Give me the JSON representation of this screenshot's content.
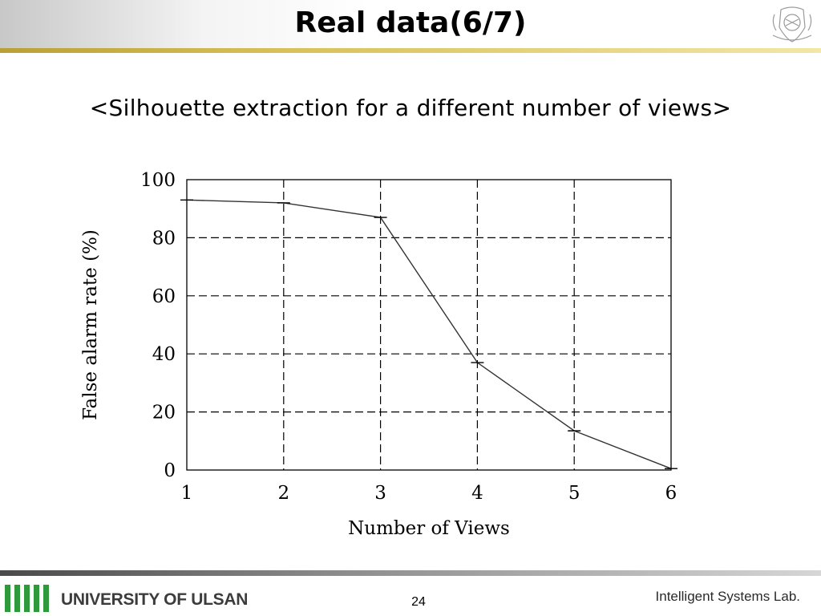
{
  "slide": {
    "title": "Real data(6/7)",
    "subtitle": "<Silhouette extraction for a different number of views>",
    "page_number": "24",
    "university": "UNIVERSITY OF ULSAN",
    "lab": "Intelligent Systems Lab."
  },
  "chart_data": {
    "type": "line",
    "xlabel": "Number of Views",
    "ylabel": "False alarm rate (%)",
    "x": [
      1,
      2,
      3,
      4,
      5,
      6
    ],
    "xticks": [
      "1",
      "2",
      "3",
      "4",
      "5",
      "6"
    ],
    "yticks": [
      "0",
      "20",
      "40",
      "60",
      "80",
      "100"
    ],
    "xlim": [
      1,
      6
    ],
    "ylim": [
      0,
      100
    ],
    "grid": true,
    "grid_style": "dashed",
    "series": [
      {
        "values": [
          93,
          92,
          87,
          37,
          13.5,
          0.5
        ]
      }
    ]
  }
}
